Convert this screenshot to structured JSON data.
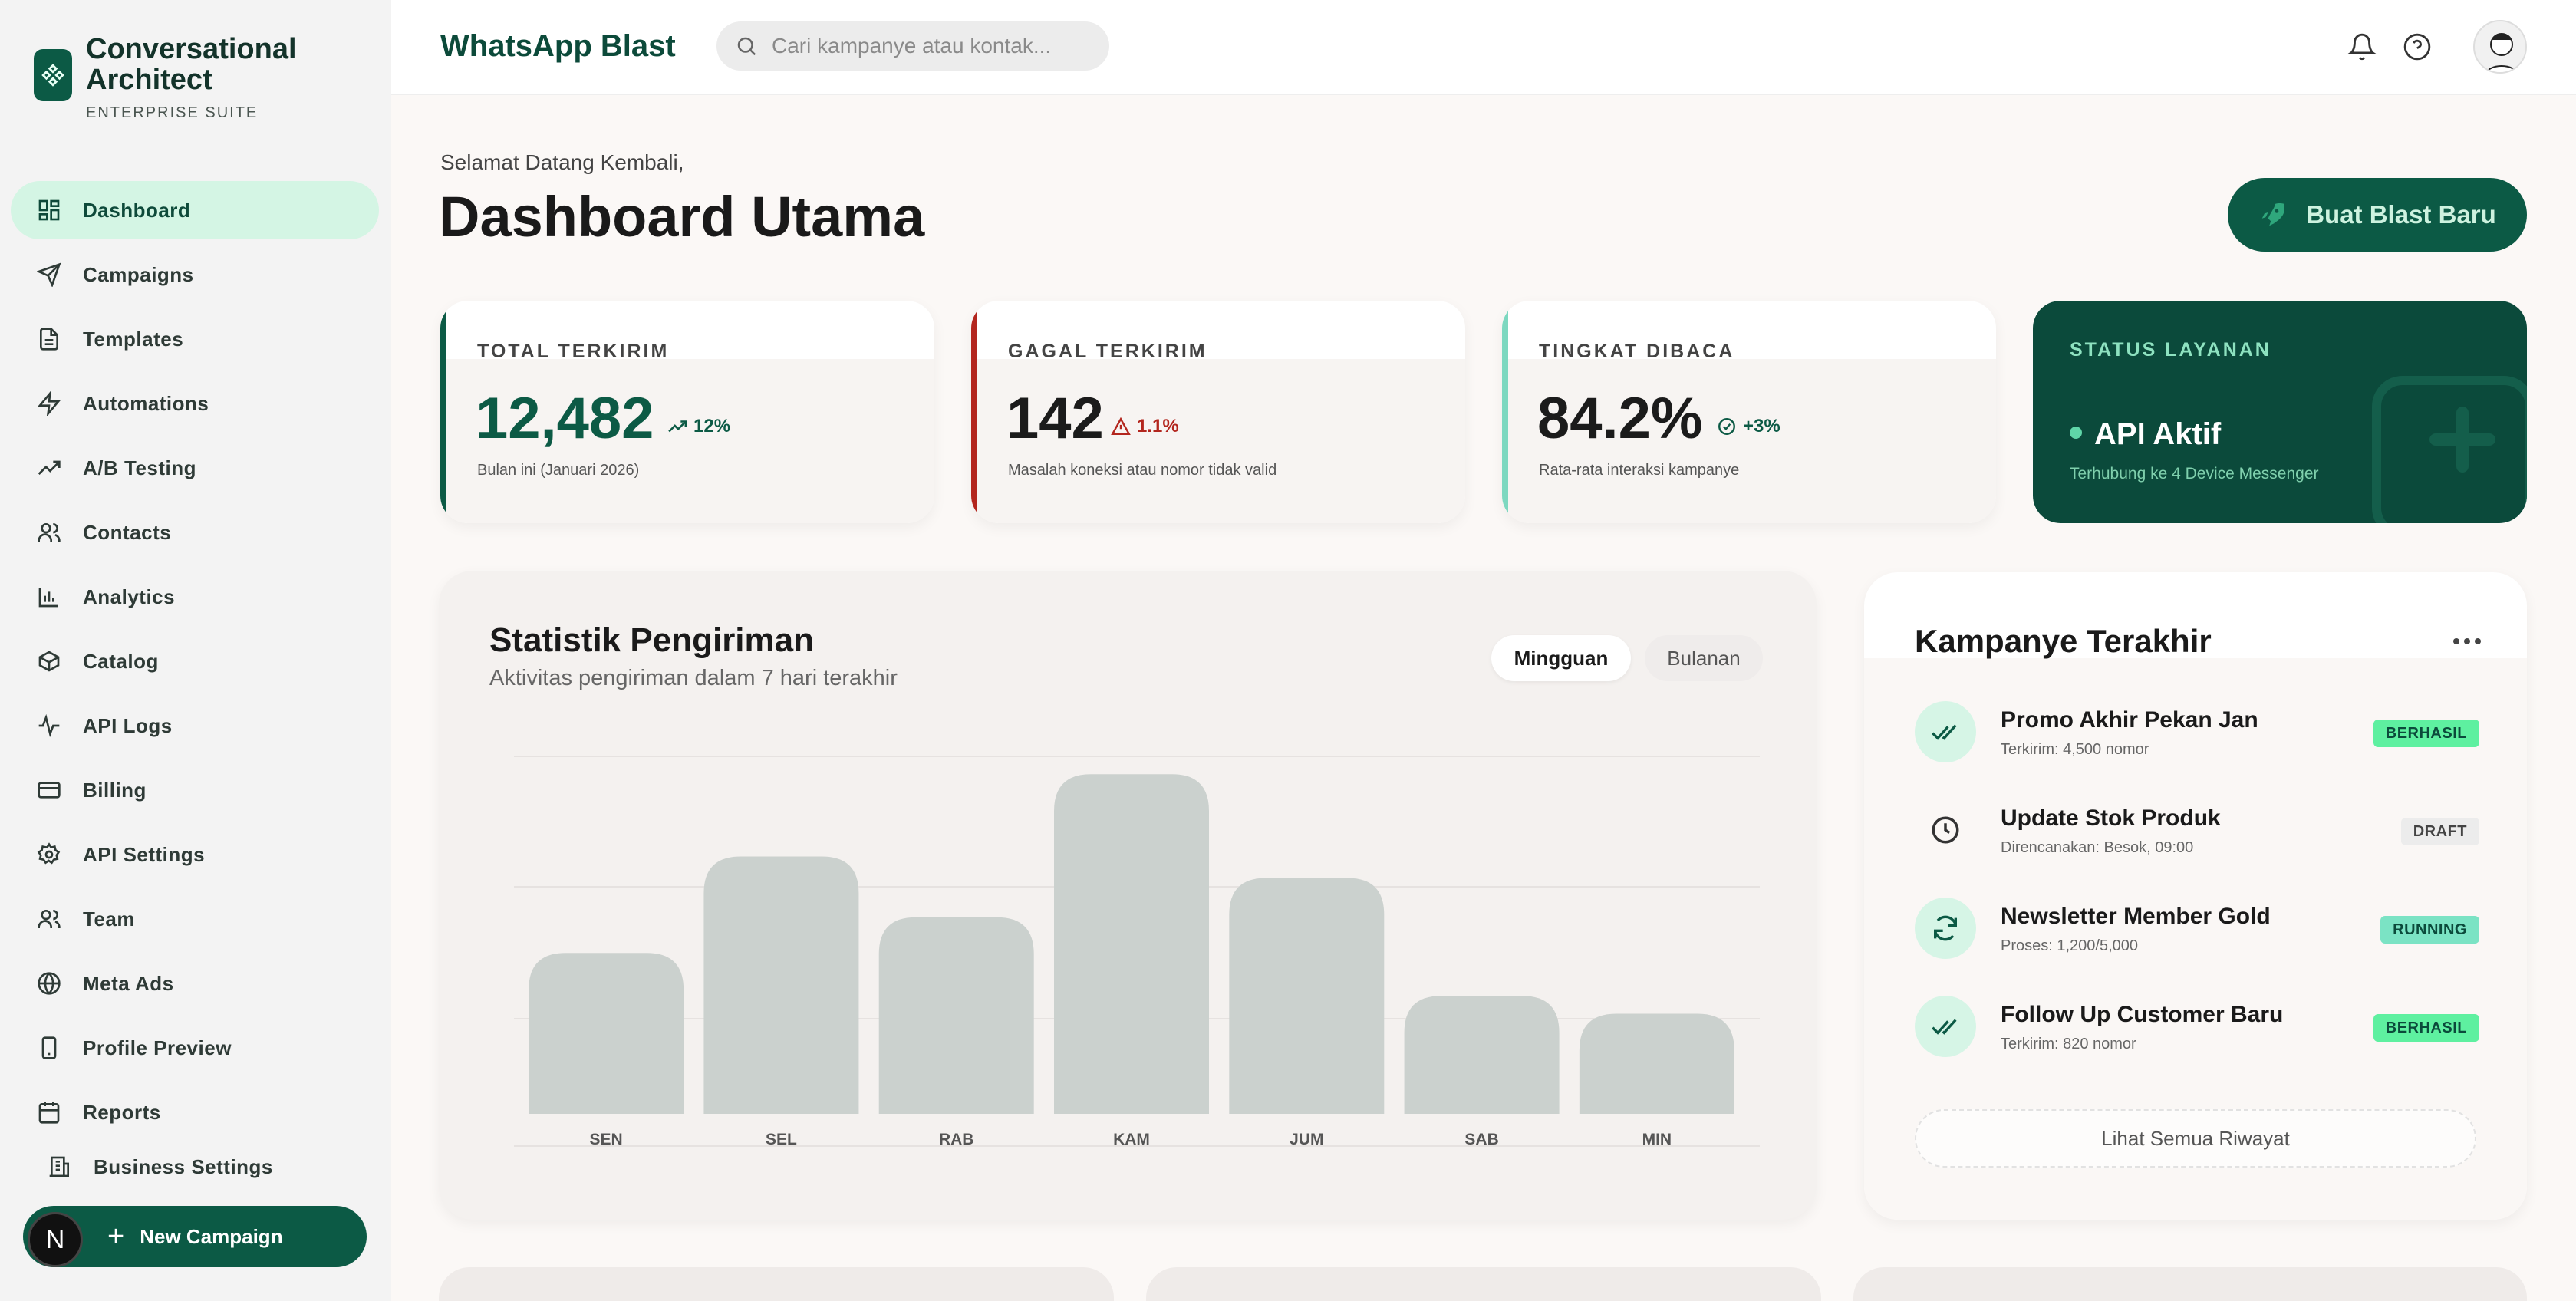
{
  "brand": {
    "name_line1": "Conversational",
    "name_line2": "Architect",
    "subtitle": "ENTERPRISE SUITE"
  },
  "sidebar": {
    "items": [
      {
        "label": "Dashboard",
        "icon": "grid-icon",
        "active": true
      },
      {
        "label": "Campaigns",
        "icon": "send-icon"
      },
      {
        "label": "Templates",
        "icon": "document-icon"
      },
      {
        "label": "Automations",
        "icon": "bolt-icon"
      },
      {
        "label": "A/B Testing",
        "icon": "trend-icon"
      },
      {
        "label": "Contacts",
        "icon": "users-icon"
      },
      {
        "label": "Analytics",
        "icon": "bar-chart-icon"
      },
      {
        "label": "Catalog",
        "icon": "box-icon"
      },
      {
        "label": "API Logs",
        "icon": "pulse-icon"
      },
      {
        "label": "Billing",
        "icon": "card-icon"
      },
      {
        "label": "API Settings",
        "icon": "gear-icon"
      },
      {
        "label": "Team",
        "icon": "team-icon"
      },
      {
        "label": "Meta Ads",
        "icon": "globe-icon"
      },
      {
        "label": "Profile Preview",
        "icon": "phone-icon"
      },
      {
        "label": "Reports",
        "icon": "calendar-icon"
      }
    ],
    "business_settings": "Business Settings",
    "new_campaign": "New Campaign",
    "avatar_letter": "N"
  },
  "header": {
    "app_title": "WhatsApp Blast",
    "search_placeholder": "Cari kampanye atau kontak..."
  },
  "main": {
    "welcome": "Selamat Datang Kembali,",
    "title": "Dashboard Utama",
    "cta": "Buat Blast Baru"
  },
  "stats": [
    {
      "label": "TOTAL TERKIRIM",
      "value": "12,482",
      "delta": "12%",
      "note": "Bulan ini (Januari 2026)",
      "accent": "#0c5a45",
      "value_color": "#0c5a45",
      "delta_color": "#0c5a45"
    },
    {
      "label": "GAGAL TERKIRIM",
      "value": "142",
      "delta": "1.1%",
      "note": "Masalah koneksi atau nomor tidak valid",
      "accent": "#b3261e",
      "value_color": "#1a1a1a",
      "delta_color": "#b3261e"
    },
    {
      "label": "TINGKAT DIBACA",
      "value": "84.2%",
      "delta": "+3%",
      "note": "Rata-rata interaksi kampanye",
      "accent": "#7dd8c0",
      "value_color": "#1a1a1a",
      "delta_color": "#0c5a45"
    }
  ],
  "status": {
    "label": "STATUS LAYANAN",
    "value": "API Aktif",
    "sub": "Terhubung ke 4 Device Messenger"
  },
  "chart": {
    "title": "Statistik Pengiriman",
    "subtitle": "Aktivitas pengiriman dalam 7 hari terakhir",
    "toggle_on": "Mingguan",
    "toggle_off": "Bulanan"
  },
  "chart_data": {
    "type": "bar",
    "categories": [
      "SEN",
      "SEL",
      "RAB",
      "KAM",
      "JUM",
      "SAB",
      "MIN"
    ],
    "values": [
      45,
      72,
      55,
      95,
      66,
      33,
      28
    ],
    "ylim": [
      0,
      100
    ],
    "grid": true,
    "bar_color": "#cbd1ce"
  },
  "recent": {
    "title": "Kampanye Terakhir",
    "items": [
      {
        "name": "Promo Akhir Pekan Jan",
        "meta": "Terkirim: 4,500 nomor",
        "badge": "BERHASIL",
        "icon": "double-check-icon",
        "badge_bg": "#5ef0a0",
        "badge_fg": "#0b4a3b",
        "icon_bg": "#d6f5e6"
      },
      {
        "name": "Update Stok Produk",
        "meta": "Direncanakan: Besok, 09:00",
        "badge": "DRAFT",
        "icon": "clock-icon",
        "badge_bg": "#ececec",
        "badge_fg": "#444",
        "icon_bg": "transparent"
      },
      {
        "name": "Newsletter Member Gold",
        "meta": "Proses: 1,200/5,000",
        "badge": "RUNNING",
        "icon": "refresh-icon",
        "badge_bg": "#7be3c4",
        "badge_fg": "#0b4a3b",
        "icon_bg": "#d6f5e6"
      },
      {
        "name": "Follow Up Customer Baru",
        "meta": "Terkirim: 820 nomor",
        "badge": "BERHASIL",
        "icon": "double-check-icon",
        "badge_bg": "#5ef0a0",
        "badge_fg": "#0b4a3b",
        "icon_bg": "#d6f5e6"
      }
    ],
    "history_button": "Lihat Semua Riwayat"
  }
}
